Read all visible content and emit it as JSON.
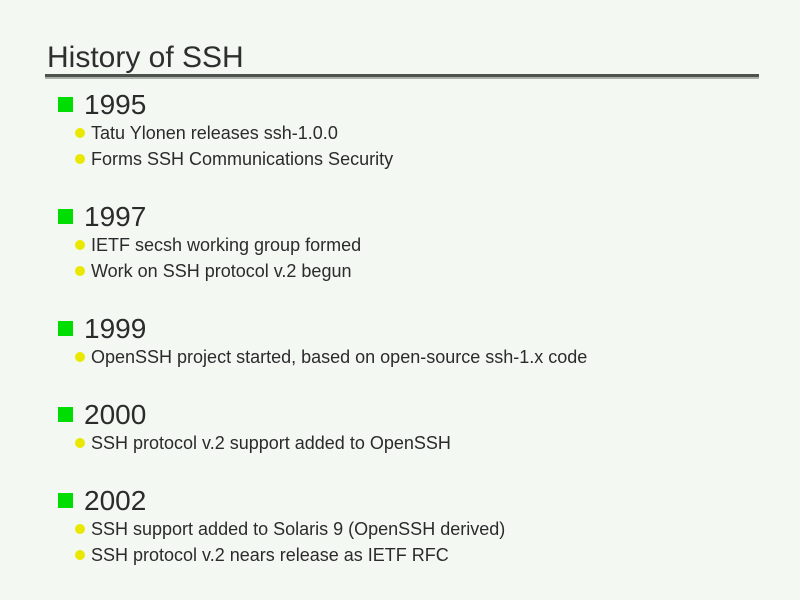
{
  "slide": {
    "title": "History of SSH",
    "sections": [
      {
        "year": "1995",
        "items": [
          "Tatu Ylonen releases ssh-1.0.0",
          "Forms SSH Communications Security"
        ]
      },
      {
        "year": "1997",
        "items": [
          "IETF secsh working group formed",
          "Work on SSH protocol v.2 begun"
        ]
      },
      {
        "year": "1999",
        "items": [
          "OpenSSH project started, based on open-source ssh-1.x code"
        ]
      },
      {
        "year": "2000",
        "items": [
          "SSH protocol v.2 support added to OpenSSH"
        ]
      },
      {
        "year": "2002",
        "items": [
          "SSH support added to Solaris 9 (OpenSSH derived)",
          "SSH protocol v.2 nears release as IETF RFC"
        ]
      }
    ],
    "colors": {
      "background": "#f3f8f3",
      "text": "#2b2b2b",
      "year_bullet": "#00dd00",
      "item_bullet": "#e8e800",
      "rule_dark": "#4d524d",
      "rule_light": "#abb1ab"
    },
    "icons": {
      "year_bullet": "green-square-bullet-icon",
      "item_bullet": "yellow-circle-bullet-icon"
    }
  }
}
